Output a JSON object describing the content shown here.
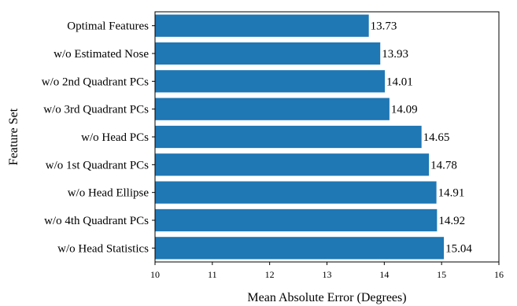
{
  "chart_data": {
    "type": "bar",
    "orientation": "horizontal",
    "categories": [
      "Optimal Features",
      "w/o Estimated Nose",
      "w/o 2nd Quadrant PCs",
      "w/o 3rd Quadrant PCs",
      "w/o Head PCs",
      "w/o 1st Quadrant PCs",
      "w/o Head Ellipse",
      "w/o 4th Quadrant PCs",
      "w/o Head Statistics"
    ],
    "values": [
      13.73,
      13.93,
      14.01,
      14.09,
      14.65,
      14.78,
      14.91,
      14.92,
      15.04
    ],
    "value_labels": [
      "13.73",
      "13.93",
      "14.01",
      "14.09",
      "14.65",
      "14.78",
      "14.91",
      "14.92",
      "15.04"
    ],
    "xlabel": "Mean Absolute Error (Degrees)",
    "ylabel": "Feature Set",
    "xlim": [
      10,
      16
    ],
    "xticks": [
      "10",
      "11",
      "12",
      "13",
      "14",
      "15",
      "16"
    ],
    "grid": false,
    "legend": "none",
    "bar_color": "#1f77b4"
  }
}
